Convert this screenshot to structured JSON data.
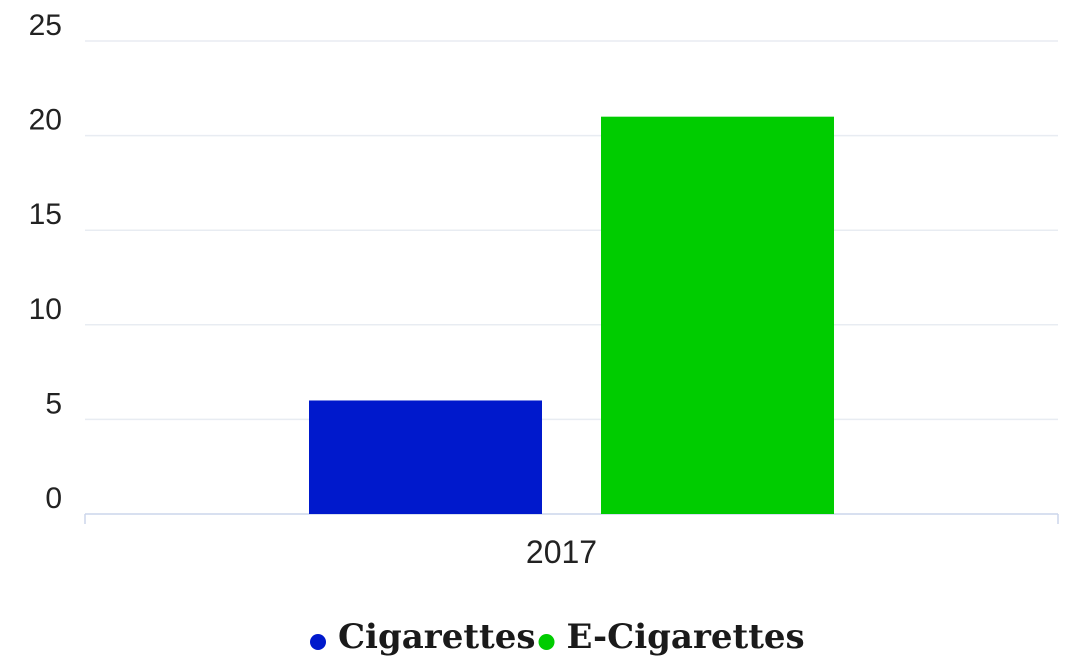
{
  "chart_data": {
    "type": "bar",
    "categories": [
      "2017"
    ],
    "series": [
      {
        "name": "Cigarettes",
        "values": [
          6
        ],
        "color": "#0019cc"
      },
      {
        "name": "E-Cigarettes",
        "values": [
          21
        ],
        "color": "#00cc00"
      }
    ],
    "title": "",
    "xlabel": "",
    "ylabel": "",
    "ylim": [
      0,
      25
    ],
    "yticks": [
      0,
      5,
      10,
      15,
      20,
      25
    ],
    "grid": true,
    "legend_position": "bottom-center"
  }
}
